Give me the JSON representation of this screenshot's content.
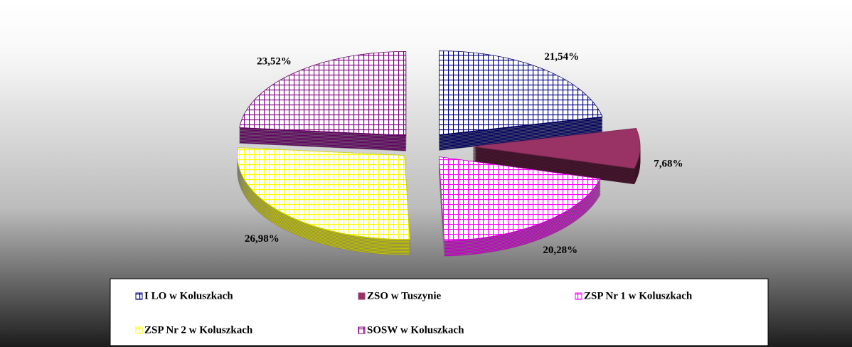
{
  "chart_data": {
    "type": "pie",
    "categories": [
      "I LO w Koluszkach",
      "ZSO w Tuszynie",
      "ZSP Nr 1 w Koluszkach",
      "ZSP Nr 2 w Koluszkach",
      "SOSW w Koluszkach"
    ],
    "values": [
      21.54,
      7.68,
      20.28,
      26.98,
      23.52
    ],
    "value_labels": [
      "21,54%",
      "7,68%",
      "20,28%",
      "26,98%",
      "23,52%"
    ],
    "colors": [
      "#000080",
      "#993366",
      "#ff00ff",
      "#ffff00",
      "#800080"
    ]
  }
}
